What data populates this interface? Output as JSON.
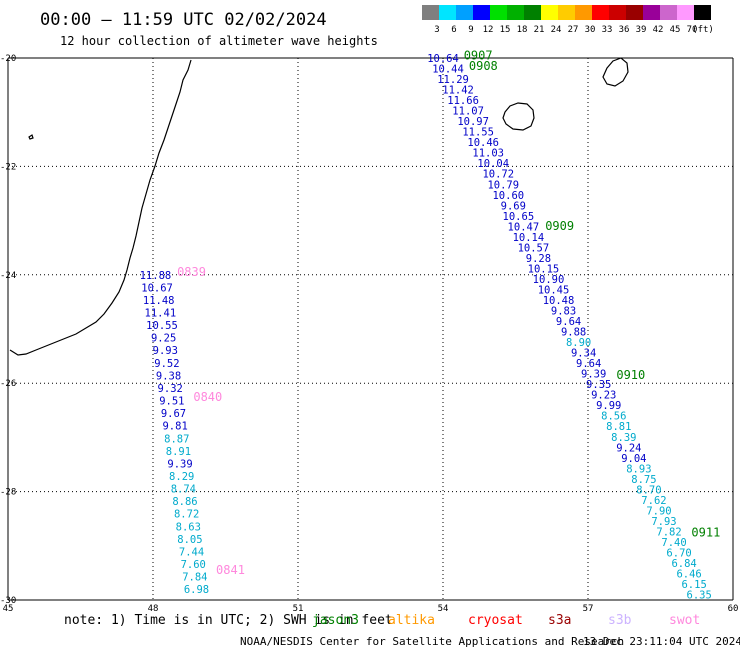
{
  "header": {
    "title": "00:00 — 11:59 UTC 02/02/2024",
    "subtitle": "12 hour collection of altimeter wave heights"
  },
  "legend": {
    "unit": "(ft)",
    "bins": [
      {
        "label": "3",
        "color": "#7f7f7f"
      },
      {
        "label": "6",
        "color": "#00e5ff"
      },
      {
        "label": "9",
        "color": "#00a0ff"
      },
      {
        "label": "12",
        "color": "#0000ff"
      },
      {
        "label": "15",
        "color": "#00e000"
      },
      {
        "label": "18",
        "color": "#00b000"
      },
      {
        "label": "21",
        "color": "#008000"
      },
      {
        "label": "24",
        "color": "#ffff00"
      },
      {
        "label": "27",
        "color": "#ffcc00"
      },
      {
        "label": "30",
        "color": "#ff9900"
      },
      {
        "label": "33",
        "color": "#ff0000"
      },
      {
        "label": "36",
        "color": "#cc0000"
      },
      {
        "label": "39",
        "color": "#990000"
      },
      {
        "label": "42",
        "color": "#990099"
      },
      {
        "label": "45",
        "color": "#cc66cc"
      },
      {
        "label": "70",
        "color": "#ff99ff"
      },
      {
        "label": "",
        "color": "#000000"
      }
    ]
  },
  "map": {
    "lon_range": [
      45,
      60
    ],
    "lat_range": [
      -30,
      -20
    ],
    "x_ticks": [
      "45",
      "48",
      "51",
      "54",
      "57",
      "60"
    ],
    "y_ticks": [
      "-20",
      "-22",
      "-24",
      "-26",
      "-28",
      "-30"
    ]
  },
  "tracks": [
    {
      "lon_start": 48.05,
      "lon_end": 48.9,
      "lat_start": -24.0,
      "lat_end": -29.8,
      "time_labels": [
        {
          "text": "0839",
          "lat": -23.95,
          "color": "#ff88dd"
        },
        {
          "text": "0840",
          "lat": -26.25,
          "color": "#ff88dd"
        },
        {
          "text": "0841",
          "lat": -29.45,
          "color": "#ff88dd"
        }
      ],
      "points": [
        {
          "text": "11.88",
          "color": "#0000c8"
        },
        {
          "text": "10.67",
          "color": "#0000c8"
        },
        {
          "text": "11.48",
          "color": "#0000c8"
        },
        {
          "text": "11.41",
          "color": "#0000c8"
        },
        {
          "text": "10.55",
          "color": "#0000c8"
        },
        {
          "text": "9.25",
          "color": "#0000c8"
        },
        {
          "text": "9.93",
          "color": "#0000c8"
        },
        {
          "text": "9.52",
          "color": "#0000c8"
        },
        {
          "text": "9.38",
          "color": "#0000c8"
        },
        {
          "text": "9.32",
          "color": "#0000c8"
        },
        {
          "text": "9.51",
          "color": "#0000c8"
        },
        {
          "text": "9.67",
          "color": "#0000c8"
        },
        {
          "text": "9.81",
          "color": "#0000c8"
        },
        {
          "text": "8.87",
          "color": "#00aacc"
        },
        {
          "text": "8.91",
          "color": "#00aacc"
        },
        {
          "text": "9.39",
          "color": "#0000c8"
        },
        {
          "text": "8.29",
          "color": "#00aacc"
        },
        {
          "text": "8.74",
          "color": "#00aacc"
        },
        {
          "text": "8.86",
          "color": "#00aacc"
        },
        {
          "text": "8.72",
          "color": "#00aacc"
        },
        {
          "text": "8.63",
          "color": "#00aacc"
        },
        {
          "text": "8.05",
          "color": "#00aacc"
        },
        {
          "text": "7.44",
          "color": "#00aacc"
        },
        {
          "text": "7.60",
          "color": "#00aacc"
        },
        {
          "text": "7.84",
          "color": "#00aacc"
        },
        {
          "text": "6.98",
          "color": "#00aacc"
        }
      ]
    },
    {
      "lon_start": 54.0,
      "lon_end": 59.3,
      "lat_start": -20.0,
      "lat_end": -29.9,
      "time_labels": [
        {
          "text": "0907",
          "lat": -19.95,
          "color": "#008000"
        },
        {
          "text": "0908",
          "lat": -20.15,
          "color": "#008000"
        },
        {
          "text": "0909",
          "lat": -23.1,
          "color": "#008000"
        },
        {
          "text": "0910",
          "lat": -25.85,
          "color": "#008000"
        },
        {
          "text": "0911",
          "lat": -28.75,
          "color": "#008000"
        }
      ],
      "points": [
        {
          "text": "10.64",
          "color": "#0000c8"
        },
        {
          "text": "10.44",
          "color": "#0000c8"
        },
        {
          "text": "11.29",
          "color": "#0000c8"
        },
        {
          "text": "11.42",
          "color": "#0000c8"
        },
        {
          "text": "11.66",
          "color": "#0000c8"
        },
        {
          "text": "11.07",
          "color": "#0000c8"
        },
        {
          "text": "10.97",
          "color": "#0000c8"
        },
        {
          "text": "11.55",
          "color": "#0000c8"
        },
        {
          "text": "10.46",
          "color": "#0000c8"
        },
        {
          "text": "11.03",
          "color": "#0000c8"
        },
        {
          "text": "10.04",
          "color": "#0000c8"
        },
        {
          "text": "10.72",
          "color": "#0000c8"
        },
        {
          "text": "10.79",
          "color": "#0000c8"
        },
        {
          "text": "10.60",
          "color": "#0000c8"
        },
        {
          "text": "9.69",
          "color": "#0000c8"
        },
        {
          "text": "10.65",
          "color": "#0000c8"
        },
        {
          "text": "10.47",
          "color": "#0000c8"
        },
        {
          "text": "10.14",
          "color": "#0000c8"
        },
        {
          "text": "10.57",
          "color": "#0000c8"
        },
        {
          "text": "9.28",
          "color": "#0000c8"
        },
        {
          "text": "10.15",
          "color": "#0000c8"
        },
        {
          "text": "10.90",
          "color": "#0000c8"
        },
        {
          "text": "10.45",
          "color": "#0000c8"
        },
        {
          "text": "10.48",
          "color": "#0000c8"
        },
        {
          "text": "9.83",
          "color": "#0000c8"
        },
        {
          "text": "9.64",
          "color": "#0000c8"
        },
        {
          "text": "9.88",
          "color": "#0000c8"
        },
        {
          "text": "8.90",
          "color": "#00aacc"
        },
        {
          "text": "9.34",
          "color": "#0000c8"
        },
        {
          "text": "9.64",
          "color": "#0000c8"
        },
        {
          "text": "9.39",
          "color": "#0000c8"
        },
        {
          "text": "9.35",
          "color": "#0000c8"
        },
        {
          "text": "9.23",
          "color": "#0000c8"
        },
        {
          "text": "9.99",
          "color": "#0000c8"
        },
        {
          "text": "8.56",
          "color": "#00aacc"
        },
        {
          "text": "8.81",
          "color": "#00aacc"
        },
        {
          "text": "8.39",
          "color": "#00aacc"
        },
        {
          "text": "9.24",
          "color": "#0000c8"
        },
        {
          "text": "9.04",
          "color": "#0000c8"
        },
        {
          "text": "8.93",
          "color": "#00aacc"
        },
        {
          "text": "8.75",
          "color": "#00aacc"
        },
        {
          "text": "8.70",
          "color": "#00aacc"
        },
        {
          "text": "7.62",
          "color": "#00aacc"
        },
        {
          "text": "7.90",
          "color": "#00aacc"
        },
        {
          "text": "7.93",
          "color": "#00aacc"
        },
        {
          "text": "7.82",
          "color": "#00aacc"
        },
        {
          "text": "7.40",
          "color": "#00aacc"
        },
        {
          "text": "6.70",
          "color": "#00aacc"
        },
        {
          "text": "6.84",
          "color": "#00aacc"
        },
        {
          "text": "6.46",
          "color": "#00aacc"
        },
        {
          "text": "6.15",
          "color": "#00aacc"
        },
        {
          "text": "6.35",
          "color": "#00aacc"
        }
      ]
    }
  ],
  "footer": {
    "note": "note: 1) Time is in UTC; 2) SWH is in feet",
    "satellites": [
      {
        "name": "jason3",
        "color": "#008000"
      },
      {
        "name": "altika",
        "color": "#ff9900"
      },
      {
        "name": "cryosat",
        "color": "#ff0000"
      },
      {
        "name": "s3a",
        "color": "#990000"
      },
      {
        "name": "s3b",
        "color": "#ccb3ff"
      },
      {
        "name": "swot",
        "color": "#ff88dd"
      }
    ],
    "credit": "NOAA/NESDIS Center for Satellite Applications and Research",
    "timestamp": "13 Dec 23:11:04 UTC 2024"
  }
}
